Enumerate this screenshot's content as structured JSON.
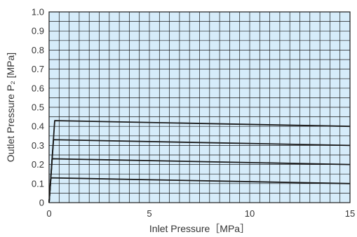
{
  "chart_data": {
    "type": "line",
    "xlabel": "Inlet Pressure［MPa］",
    "ylabel": "Outlet Pressure P₂ [MPa]",
    "xlim": [
      0,
      15
    ],
    "ylim": [
      0,
      1.0
    ],
    "x_ticks": [
      "0",
      "5",
      "10",
      "15"
    ],
    "y_ticks": [
      "0",
      "0.1",
      "0.2",
      "0.3",
      "0.4",
      "0.5",
      "0.6",
      "0.7",
      "0.8",
      "0.9",
      "1.0"
    ],
    "grid": true,
    "x_minor_step": 0.5,
    "y_minor_step": 0.05,
    "background_color": "#d6ecfa",
    "grid_color": "#1a1a1a",
    "line_color": "#1a1a1a",
    "series": [
      {
        "x": [
          0,
          0.28,
          15
        ],
        "y": [
          0,
          0.43,
          0.4
        ]
      },
      {
        "x": [
          0,
          0.22,
          15
        ],
        "y": [
          0,
          0.33,
          0.3
        ]
      },
      {
        "x": [
          0,
          0.15,
          15
        ],
        "y": [
          0,
          0.23,
          0.2
        ]
      },
      {
        "x": [
          0,
          0.09,
          15
        ],
        "y": [
          0,
          0.13,
          0.1
        ]
      }
    ]
  }
}
